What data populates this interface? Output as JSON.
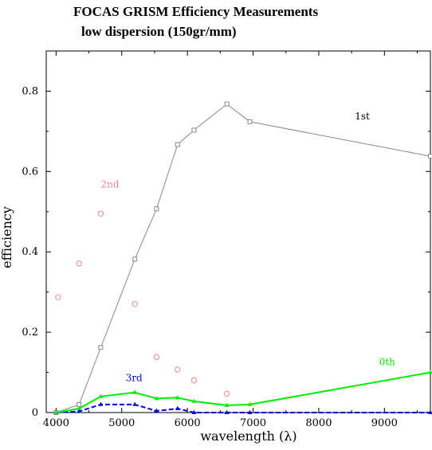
{
  "chart_data": {
    "type": "line",
    "title": "FOCAS GRISM Efficiency Measurements",
    "subtitle": "low dispersion (150gr/mm)",
    "xlabel": "wavelength (λ)",
    "ylabel": "efficiency",
    "xlim": [
      3850,
      9700
    ],
    "ylim": [
      0,
      0.9
    ],
    "x_ticks": [
      4000,
      5000,
      6000,
      7000,
      8000,
      9000
    ],
    "y_ticks": [
      0,
      0.2,
      0.4,
      0.6,
      0.8
    ],
    "y_tick_labels": [
      "0",
      "0.2",
      "0.4",
      "0.6",
      "0.8"
    ],
    "grid": false,
    "series": [
      {
        "name": "1st",
        "color": "#888888",
        "marker": "square",
        "line": "solid",
        "x": [
          4000,
          4350,
          4680,
          5200,
          5530,
          5850,
          6100,
          6600,
          6950,
          9700
        ],
        "y": [
          0.0,
          0.02,
          0.162,
          0.382,
          0.507,
          0.667,
          0.703,
          0.768,
          0.724,
          0.638
        ],
        "label_x": 8550,
        "label_y": 0.73
      },
      {
        "name": "2nd",
        "color": "#ee8888",
        "marker": "circle",
        "line": "none",
        "x": [
          4030,
          4350,
          4680,
          5200,
          5530,
          5850,
          6100,
          6600
        ],
        "y": [
          0.287,
          0.371,
          0.495,
          0.27,
          0.138,
          0.107,
          0.08,
          0.047
        ],
        "label_x": 4680,
        "label_y": 0.56
      },
      {
        "name": "3rd",
        "color": "#0000dd",
        "marker": "triangle",
        "line": "dashed",
        "x": [
          4000,
          4350,
          4680,
          5200,
          5530,
          5850,
          6100,
          6600,
          6950,
          9700
        ],
        "y": [
          0.0,
          0.003,
          0.02,
          0.02,
          0.004,
          0.01,
          0.0,
          0.0,
          0.0,
          0.0
        ],
        "label_x": 5060,
        "label_y": 0.078
      },
      {
        "name": "0th",
        "color": "#00ee00",
        "marker": "triangle",
        "line": "solid",
        "x": [
          4000,
          4350,
          4680,
          5200,
          5530,
          5850,
          6100,
          6600,
          6950,
          9700
        ],
        "y": [
          0.0,
          0.01,
          0.04,
          0.05,
          0.035,
          0.037,
          0.028,
          0.018,
          0.02,
          0.1
        ],
        "label_x": 8920,
        "label_y": 0.118
      }
    ]
  }
}
